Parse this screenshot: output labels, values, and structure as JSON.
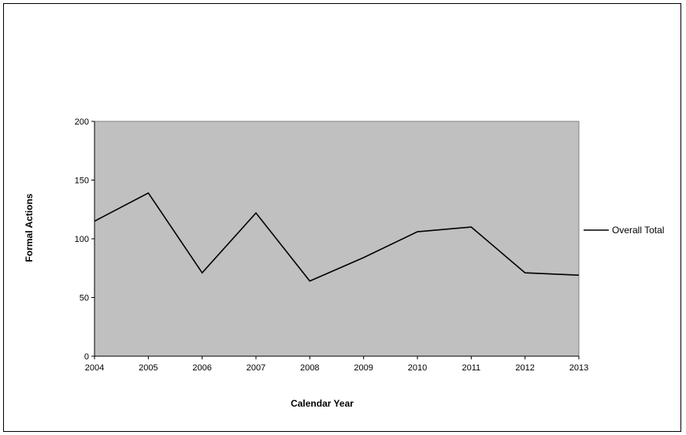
{
  "chart_data": {
    "type": "line",
    "title": "",
    "xlabel": "Calendar Year",
    "ylabel": "Formal Actions",
    "x": [
      2004,
      2005,
      2006,
      2007,
      2008,
      2009,
      2010,
      2011,
      2012,
      2013
    ],
    "ylim": [
      0,
      200
    ],
    "yticks": [
      0,
      50,
      100,
      150,
      200
    ],
    "grid": false,
    "legend_position": "right",
    "plot_background": "#c0c0c0",
    "series": [
      {
        "name": "Overall Total",
        "color": "#000000",
        "values": [
          115,
          139,
          71,
          122,
          64,
          84,
          106,
          110,
          71,
          69
        ]
      }
    ]
  }
}
